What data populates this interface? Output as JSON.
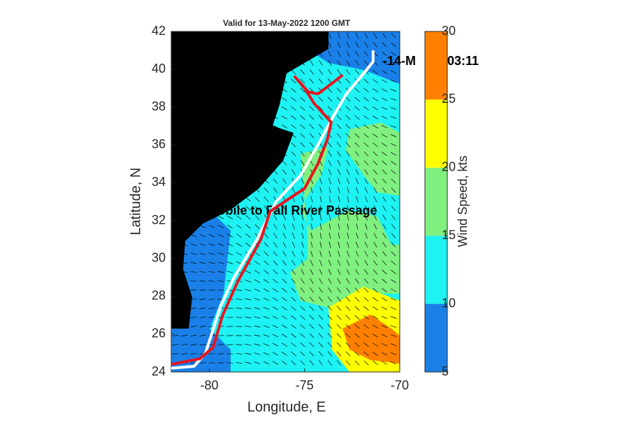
{
  "chart_data": {
    "type": "map",
    "title": "Valid for 13-May-2022 1200 GMT",
    "x_label": "Longitude, E",
    "y_label": "Latitude, N",
    "xlim": [
      -82,
      -70
    ],
    "xticks": [
      -80,
      -75,
      -70
    ],
    "ylim": [
      24,
      42
    ],
    "yticks": [
      24,
      26,
      28,
      30,
      32,
      34,
      36,
      38,
      40,
      42
    ],
    "annotations": [
      "Mobile to Fall River Passage",
      "-14-M",
      "03:11"
    ],
    "series": [
      {
        "color": "#ffffff",
        "x": [
          -82,
          -80.8,
          -80.2,
          -79.4,
          -78.7,
          -77.5,
          -76.5,
          -75.2,
          -74.3,
          -73.5,
          -72.8,
          -71.8,
          -71.4,
          -71.4
        ],
        "values": [
          24.2,
          24.3,
          25.0,
          27.5,
          29.0,
          31.0,
          33.0,
          34.4,
          36.0,
          37.5,
          38.7,
          39.9,
          40.4,
          41.0
        ]
      },
      {
        "color": "#e8141e",
        "x": [
          -82,
          -80.5,
          -79.8,
          -79.3,
          -78.5,
          -77.3,
          -76.8,
          -75.0,
          -74.3,
          -73.8,
          -73.6,
          -74.5,
          -75.0,
          -75.5,
          -74.8,
          -74.3,
          -73.5,
          -73.0
        ],
        "values": [
          24.4,
          24.7,
          25.3,
          27.0,
          28.8,
          31.0,
          32.5,
          33.7,
          35.0,
          36.3,
          37.2,
          38.2,
          39.0,
          39.6,
          38.8,
          38.7,
          39.3,
          39.7
        ]
      }
    ],
    "colorbar": {
      "label": "Wind Speed, kts",
      "ticks": [
        5,
        10,
        15,
        20,
        25,
        30
      ],
      "colors": [
        "#1a80e8",
        "#1ef2f2",
        "#80f080",
        "#ffff00",
        "#ff8000"
      ]
    }
  }
}
